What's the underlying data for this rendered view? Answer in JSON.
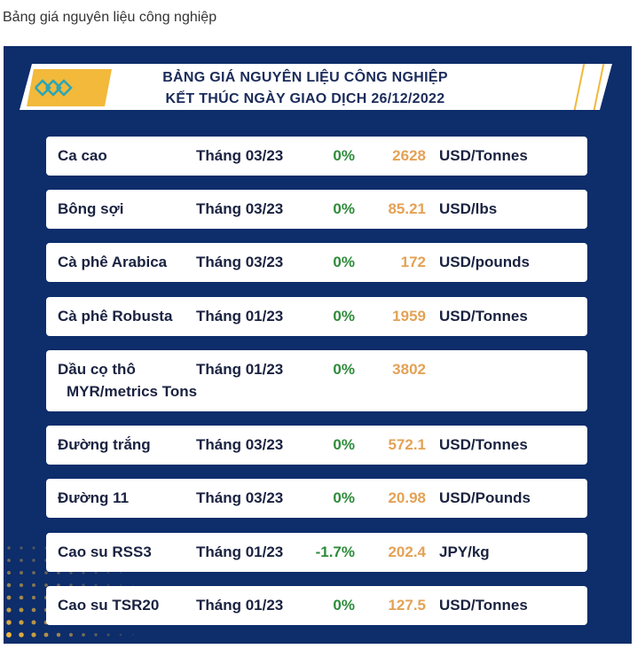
{
  "page": {
    "caption": "Bảng giá nguyên liệu công nghiệp"
  },
  "banner": {
    "title_line1": "BẢNG GIÁ NGUYÊN LIỆU CÔNG NGHIỆP",
    "title_line2": "KẾT THÚC NGÀY GIAO DỊCH 26/12/2022"
  },
  "colors": {
    "board_background": "#0d2d6b",
    "accent_gold": "#f2b93b",
    "change_green": "#2e8b3a",
    "price_orange": "#e3a256"
  },
  "rows": [
    {
      "name": "Ca cao",
      "month": "Tháng 03/23",
      "change": "0%",
      "price": "2628",
      "unit": "USD/Tonnes"
    },
    {
      "name": "Bông sợi",
      "month": "Tháng 03/23",
      "change": "0%",
      "price": "85.21",
      "unit": "USD/lbs"
    },
    {
      "name": "Cà phê Arabica",
      "month": "Tháng 03/23",
      "change": "0%",
      "price": "172",
      "unit": "USD/pounds"
    },
    {
      "name": "Cà phê Robusta",
      "month": "Tháng 01/23",
      "change": "0%",
      "price": "1959",
      "unit": "USD/Tonnes"
    },
    {
      "name": "Dầu cọ thô",
      "month": "Tháng 01/23",
      "change": "0%",
      "price": "3802",
      "unit": "MYR/metrics Tons"
    },
    {
      "name": "Đường trắng",
      "month": "Tháng 03/23",
      "change": "0%",
      "price": "572.1",
      "unit": "USD/Tonnes"
    },
    {
      "name": "Đường 11",
      "month": "Tháng 03/23",
      "change": "0%",
      "price": "20.98",
      "unit": "USD/Pounds"
    },
    {
      "name": "Cao su RSS3",
      "month": "Tháng 01/23",
      "change": "-1.7%",
      "price": "202.4",
      "unit": "JPY/kg"
    },
    {
      "name": "Cao su TSR20",
      "month": "Tháng 01/23",
      "change": "0%",
      "price": "127.5",
      "unit": "USD/Tonnes"
    }
  ]
}
